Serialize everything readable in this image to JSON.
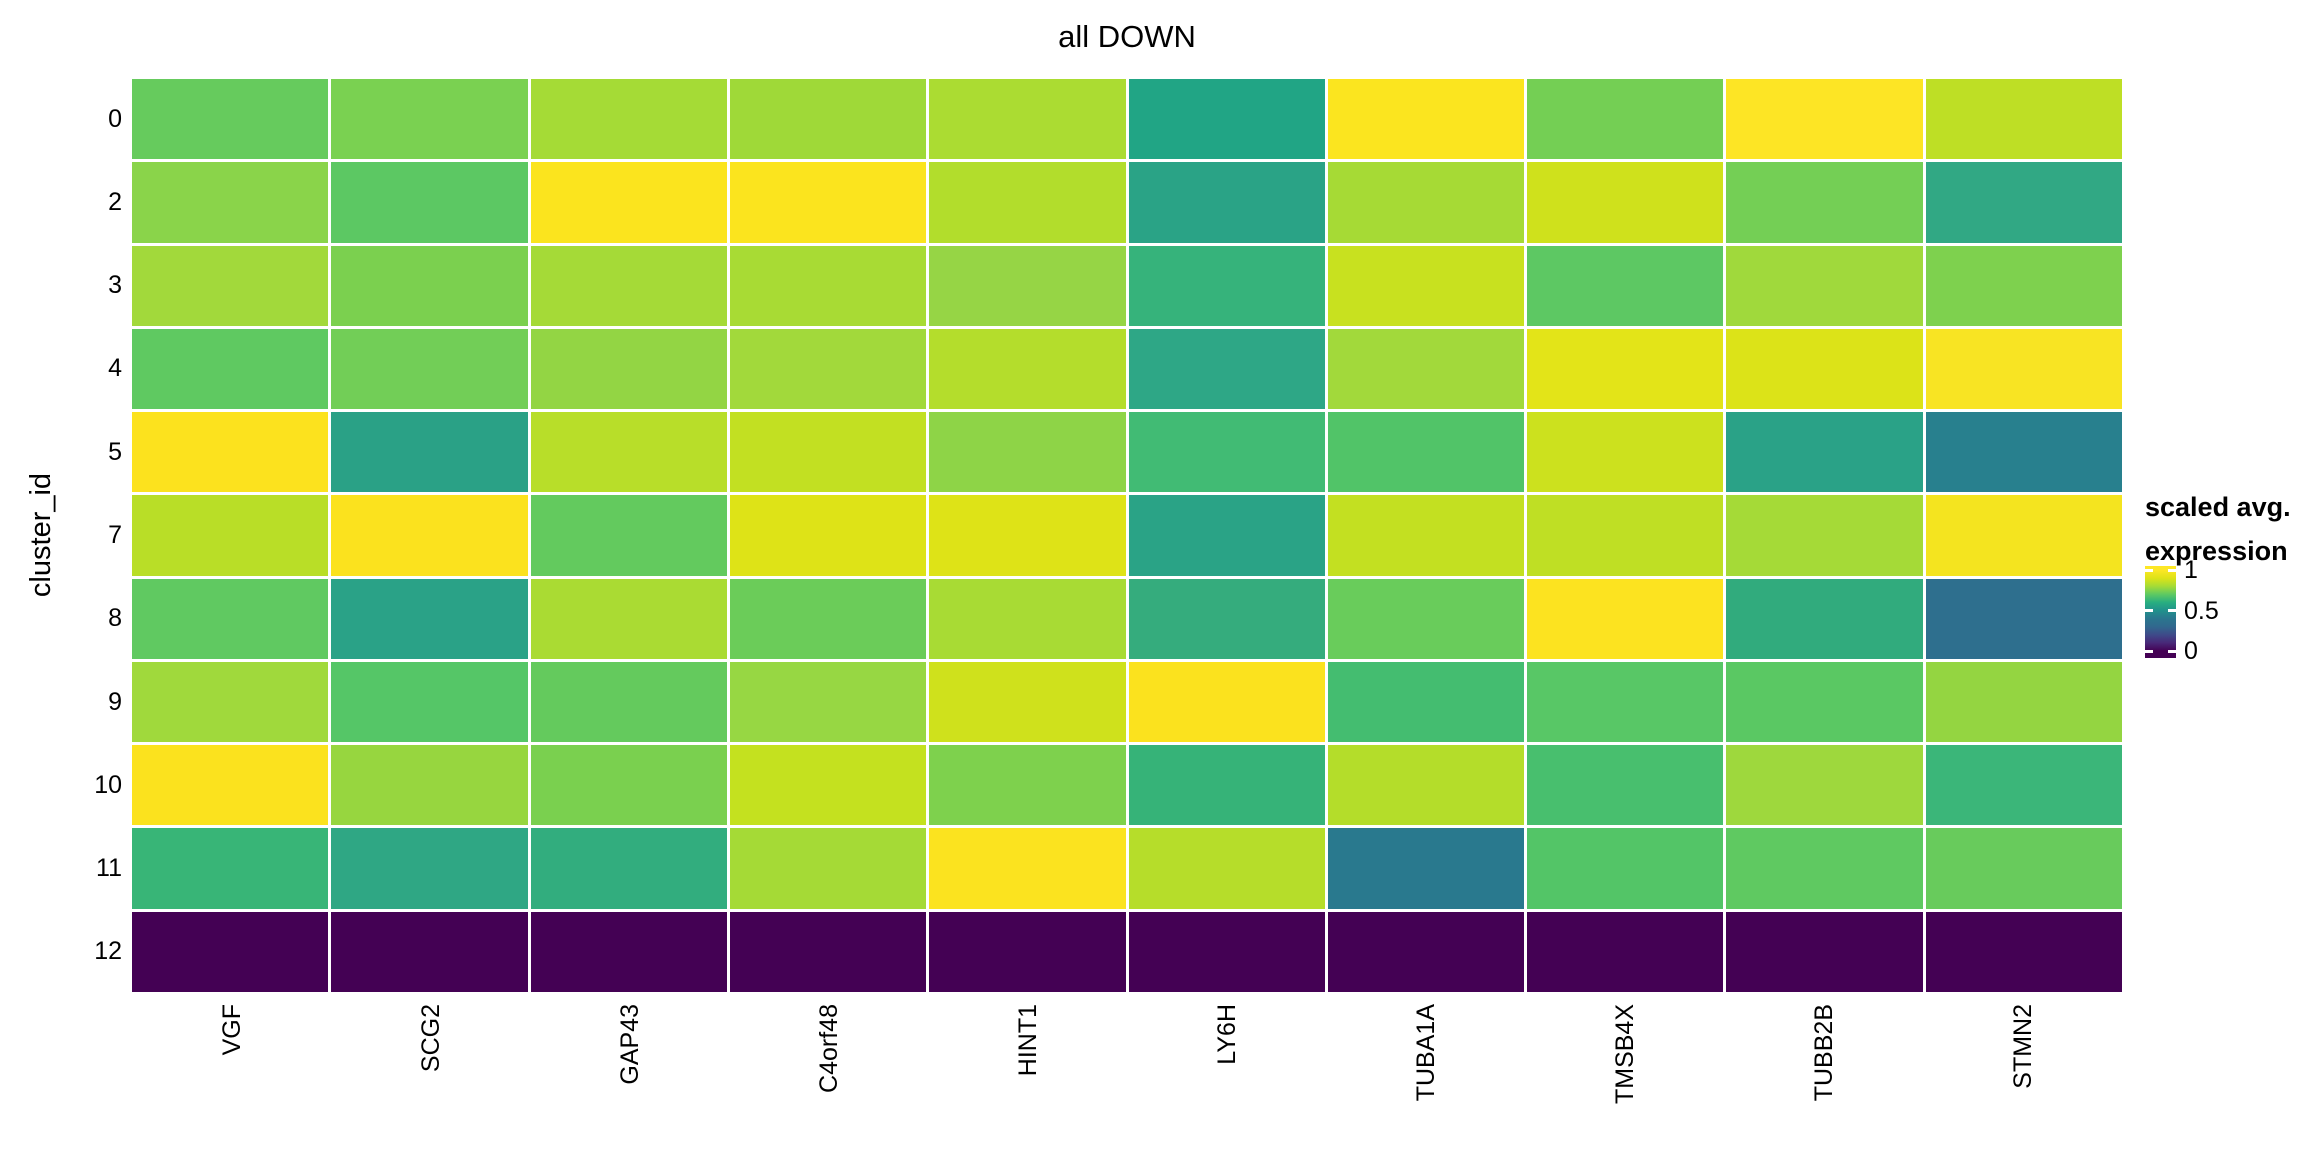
{
  "figure": {
    "background": "#ffffff"
  },
  "chart_data": {
    "type": "heatmap",
    "title": "all DOWN",
    "xlabel": "",
    "ylabel": "cluster_id",
    "x_categories": [
      "VGF",
      "SCG2",
      "GAP43",
      "C4orf48",
      "HINT1",
      "LY6H",
      "TUBA1A",
      "TMSB4X",
      "TUBB2B",
      "STMN2"
    ],
    "y_categories": [
      "0",
      "2",
      "3",
      "4",
      "5",
      "7",
      "8",
      "9",
      "10",
      "11",
      "12"
    ],
    "value_range": [
      0,
      1
    ],
    "values": [
      [
        0.71,
        0.74,
        0.8,
        0.79,
        0.81,
        0.56,
        0.97,
        0.73,
        0.98,
        0.84
      ],
      [
        0.76,
        0.69,
        0.97,
        0.97,
        0.82,
        0.57,
        0.8,
        0.87,
        0.73,
        0.58
      ],
      [
        0.79,
        0.74,
        0.8,
        0.8,
        0.77,
        0.62,
        0.86,
        0.69,
        0.79,
        0.74
      ],
      [
        0.7,
        0.72,
        0.77,
        0.79,
        0.82,
        0.58,
        0.79,
        0.91,
        0.9,
        0.96
      ],
      [
        0.97,
        0.56,
        0.83,
        0.85,
        0.76,
        0.64,
        0.67,
        0.87,
        0.57,
        0.42
      ],
      [
        0.83,
        0.97,
        0.7,
        0.9,
        0.9,
        0.57,
        0.85,
        0.84,
        0.8,
        0.95
      ],
      [
        0.7,
        0.57,
        0.81,
        0.71,
        0.8,
        0.6,
        0.71,
        0.98,
        0.59,
        0.33
      ],
      [
        0.79,
        0.68,
        0.7,
        0.78,
        0.87,
        0.97,
        0.65,
        0.68,
        0.69,
        0.77
      ],
      [
        0.97,
        0.77,
        0.74,
        0.85,
        0.74,
        0.61,
        0.82,
        0.65,
        0.78,
        0.62
      ],
      [
        0.62,
        0.58,
        0.6,
        0.8,
        0.97,
        0.82,
        0.38,
        0.67,
        0.69,
        0.71
      ],
      [
        0.0,
        0.0,
        0.0,
        0.0,
        0.0,
        0.0,
        0.0,
        0.0,
        0.0,
        0.0
      ]
    ],
    "cell_colors": [
      [
        "#66cb5d",
        "#7ad151",
        "#a5db36",
        "#9fd938",
        "#abdc32",
        "#21a585",
        "#fbe51f",
        "#74cf54",
        "#fde525",
        "#bedf25"
      ],
      [
        "#8ad44a",
        "#5cc863",
        "#fbe41e",
        "#fbe41e",
        "#b2dd2c",
        "#2aa386",
        "#a6da35",
        "#cfe11c",
        "#74cf55",
        "#31a884"
      ],
      [
        "#a2d93b",
        "#7bd04f",
        "#a5da37",
        "#a8db34",
        "#96d545",
        "#36b37b",
        "#c8e11f",
        "#5dc863",
        "#a0d93c",
        "#7ed14e"
      ],
      [
        "#5fc961",
        "#72ce57",
        "#93d544",
        "#a2d93b",
        "#b4dd2c",
        "#2ea786",
        "#a2d93b",
        "#e3e418",
        "#dce318",
        "#f8e423"
      ],
      [
        "#fce21e",
        "#2aa186",
        "#b8de29",
        "#c2e022",
        "#8ed447",
        "#41bb74",
        "#51c468",
        "#cce11e",
        "#2aa287",
        "#28808e"
      ],
      [
        "#b9de27",
        "#fbe21e",
        "#63ca5e",
        "#dee317",
        "#dee317",
        "#2aa386",
        "#c3e021",
        "#bfdf24",
        "#a5da37",
        "#f4e41f"
      ],
      [
        "#60c961",
        "#2aa287",
        "#aadb33",
        "#6bcc59",
        "#a8db34",
        "#35ac7d",
        "#69cc5b",
        "#fce320",
        "#31ab7d",
        "#2e6f8e"
      ],
      [
        "#a0d93c",
        "#55c667",
        "#64ca5d",
        "#97d743",
        "#cfe11c",
        "#fbe21e",
        "#44bd70",
        "#58c766",
        "#5ac863",
        "#94d541"
      ],
      [
        "#fbe21e",
        "#97d63f",
        "#7ad04f",
        "#c4e11f",
        "#7ed14d",
        "#36b378",
        "#b4dd2a",
        "#48bf6e",
        "#9ed83d",
        "#3bb679"
      ],
      [
        "#38b577",
        "#2fa784",
        "#32ad7e",
        "#a5da36",
        "#fbe31f",
        "#b6dd2a",
        "#29798e",
        "#53c567",
        "#5fc961",
        "#68cb5c"
      ],
      [
        "#440154",
        "#440154",
        "#440154",
        "#440154",
        "#440154",
        "#440154",
        "#440154",
        "#440154",
        "#440154",
        "#440154"
      ]
    ],
    "legend": {
      "position": "right",
      "title_line1": "scaled avg.",
      "title_line2": "expression",
      "colormap": "viridis",
      "ticks": [
        {
          "label": "1",
          "value": 1
        },
        {
          "label": "0.5",
          "value": 0.5
        },
        {
          "label": "0",
          "value": 0
        }
      ],
      "colormap_anchors": [
        {
          "v": 1.0,
          "color": "#fde725"
        },
        {
          "v": 0.9,
          "color": "#dde318"
        },
        {
          "v": 0.8,
          "color": "#a5db36"
        },
        {
          "v": 0.7,
          "color": "#5ec962"
        },
        {
          "v": 0.6,
          "color": "#28ae80"
        },
        {
          "v": 0.5,
          "color": "#21918c"
        },
        {
          "v": 0.4,
          "color": "#2a768e"
        },
        {
          "v": 0.3,
          "color": "#31688e"
        },
        {
          "v": 0.2,
          "color": "#3e4a89"
        },
        {
          "v": 0.1,
          "color": "#482878"
        },
        {
          "v": 0.0,
          "color": "#440154"
        }
      ]
    }
  }
}
